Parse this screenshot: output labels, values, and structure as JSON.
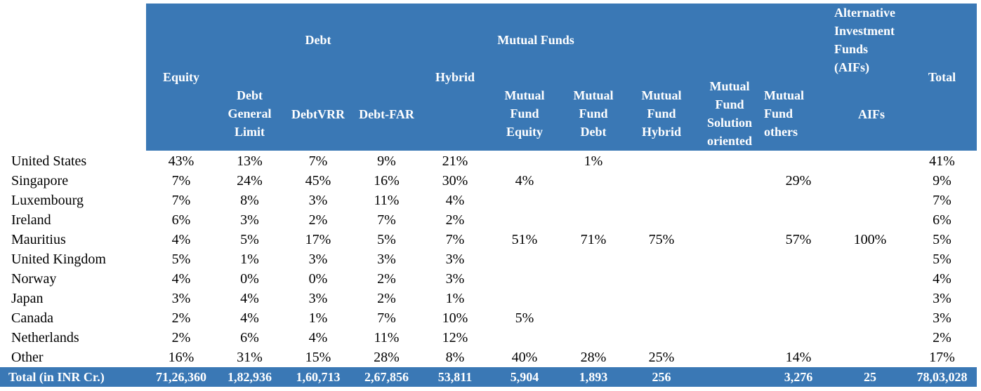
{
  "header": {
    "equity": "Equity",
    "debt": "Debt",
    "debt_general_limit": "Debt\nGeneral\nLimit",
    "debt_vrr": "DebtVRR",
    "debt_far": "Debt-FAR",
    "hybrid": "Hybrid",
    "mutual_funds": "Mutual Funds",
    "mf_equity": "Mutual\nFund\nEquity",
    "mf_debt": "Mutual\nFund\nDebt",
    "mf_hybrid": "Mutual\nFund\nHybrid",
    "mf_solution": "Mutual\nFund\nSolution\noriented",
    "mf_others": "Mutual\nFund\nothers",
    "aif_group": "Alternative\nInvestment\nFunds\n(AIFs)",
    "aifs": "AIFs",
    "total": "Total"
  },
  "rows": [
    {
      "country": "United States",
      "values": [
        "43%",
        "13%",
        "7%",
        "9%",
        "21%",
        "",
        "1%",
        "",
        "",
        "",
        "",
        "41%"
      ]
    },
    {
      "country": "Singapore",
      "values": [
        "7%",
        "24%",
        "45%",
        "16%",
        "30%",
        "4%",
        "",
        "",
        "",
        "29%",
        "",
        "9%"
      ]
    },
    {
      "country": "Luxembourg",
      "values": [
        "7%",
        "8%",
        "3%",
        "11%",
        "4%",
        "",
        "",
        "",
        "",
        "",
        "",
        "7%"
      ]
    },
    {
      "country": "Ireland",
      "values": [
        "6%",
        "3%",
        "2%",
        "7%",
        "2%",
        "",
        "",
        "",
        "",
        "",
        "",
        "6%"
      ]
    },
    {
      "country": "Mauritius",
      "values": [
        "4%",
        "5%",
        "17%",
        "5%",
        "7%",
        "51%",
        "71%",
        "75%",
        "",
        "57%",
        "100%",
        "5%"
      ]
    },
    {
      "country": "United Kingdom",
      "values": [
        "5%",
        "1%",
        "3%",
        "3%",
        "3%",
        "",
        "",
        "",
        "",
        "",
        "",
        "5%"
      ]
    },
    {
      "country": "Norway",
      "values": [
        "4%",
        "0%",
        "0%",
        "2%",
        "3%",
        "",
        "",
        "",
        "",
        "",
        "",
        "4%"
      ]
    },
    {
      "country": "Japan",
      "values": [
        "3%",
        "4%",
        "3%",
        "2%",
        "1%",
        "",
        "",
        "",
        "",
        "",
        "",
        "3%"
      ]
    },
    {
      "country": "Canada",
      "values": [
        "2%",
        "4%",
        "1%",
        "7%",
        "10%",
        "5%",
        "",
        "",
        "",
        "",
        "",
        "3%"
      ]
    },
    {
      "country": "Netherlands",
      "values": [
        "2%",
        "6%",
        "4%",
        "11%",
        "12%",
        "",
        "",
        "",
        "",
        "",
        "",
        "2%"
      ]
    },
    {
      "country": "Other",
      "values": [
        "16%",
        "31%",
        "15%",
        "28%",
        "8%",
        "40%",
        "28%",
        "25%",
        "",
        "14%",
        "",
        "17%"
      ]
    }
  ],
  "total_row": {
    "label": "Total (in INR Cr.)",
    "values": [
      "71,26,360",
      "1,82,936",
      "1,60,713",
      "2,67,856",
      "53,811",
      "5,904",
      "1,893",
      "256",
      "",
      "3,276",
      "25",
      "78,03,028"
    ]
  }
}
